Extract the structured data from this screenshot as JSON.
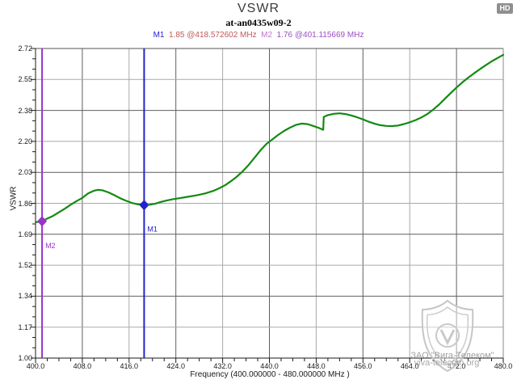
{
  "header": {
    "title": "VSWR",
    "subtitle": "at-an0435w09-2"
  },
  "hd_badge": "HD",
  "marker_readout": {
    "m1_label": "M1",
    "m1_value": "1.85 @418.572602 MHz",
    "m2_label": "M2",
    "m2_value": "1.76 @401.115669 MHz"
  },
  "colors": {
    "curve": "#128a12",
    "m1": "#2323cc",
    "m2": "#9933cc",
    "m1_value_text": "#c05858",
    "m2_value_text": "#9a4ec0",
    "grid_dark": "#5f5f5f",
    "grid_light": "#a9a9a9",
    "axis": "#1a1a1a",
    "border_top": "#555555",
    "border_right": "#8a8a8a",
    "watermark": "#8f8f8f"
  },
  "watermark": {
    "line1": "ЗАО \"Вига-Телеком\"",
    "line2": "viva-telecom.org"
  },
  "chart_data": {
    "type": "line",
    "title": "VSWR",
    "subtitle": "at-an0435w09-2",
    "xlabel": "Frequency (400.000000 - 480.000000 MHz )",
    "ylabel": "VSWR",
    "xlim": [
      400,
      480
    ],
    "ylim": [
      1.0,
      2.72
    ],
    "grid": true,
    "x_major_step_mhz": 8,
    "x_minor_step_mhz": 2,
    "y_minor_per_major": 3,
    "x_tick_labels": [
      "400.0",
      "408.0",
      "416.0",
      "424.0",
      "432.0",
      "440.0",
      "448.0",
      "456.0",
      "464.0",
      "472.0",
      "480.0"
    ],
    "y_tick_labels": [
      "2.72",
      "2.55",
      "2.38",
      "2.20",
      "2.03",
      "1.86",
      "1.69",
      "1.52",
      "1.34",
      "1.17",
      "1.00"
    ],
    "series": [
      {
        "name": "VSWR trace",
        "points": [
          [
            400,
            1.755
          ],
          [
            401.12,
            1.76
          ],
          [
            402,
            1.775
          ],
          [
            403,
            1.79
          ],
          [
            404,
            1.81
          ],
          [
            405,
            1.83
          ],
          [
            406,
            1.852
          ],
          [
            407,
            1.872
          ],
          [
            408,
            1.89
          ],
          [
            409,
            1.915
          ],
          [
            410,
            1.93
          ],
          [
            410.7,
            1.935
          ],
          [
            411.5,
            1.932
          ],
          [
            412.5,
            1.92
          ],
          [
            413.5,
            1.905
          ],
          [
            414.5,
            1.888
          ],
          [
            415.5,
            1.874
          ],
          [
            416.5,
            1.862
          ],
          [
            417.5,
            1.854
          ],
          [
            418.57,
            1.85
          ],
          [
            419.5,
            1.852
          ],
          [
            420.5,
            1.858
          ],
          [
            421.5,
            1.868
          ],
          [
            422.5,
            1.876
          ],
          [
            423.5,
            1.883
          ],
          [
            424.5,
            1.888
          ],
          [
            426,
            1.896
          ],
          [
            427.5,
            1.904
          ],
          [
            429,
            1.915
          ],
          [
            430.5,
            1.93
          ],
          [
            431.5,
            1.945
          ],
          [
            432.5,
            1.962
          ],
          [
            433.5,
            1.985
          ],
          [
            434.5,
            2.01
          ],
          [
            435.5,
            2.04
          ],
          [
            436.5,
            2.075
          ],
          [
            437.5,
            2.115
          ],
          [
            438.5,
            2.155
          ],
          [
            439.5,
            2.19
          ],
          [
            440.5,
            2.215
          ],
          [
            441.5,
            2.24
          ],
          [
            442.5,
            2.262
          ],
          [
            443.5,
            2.28
          ],
          [
            444.5,
            2.295
          ],
          [
            445.5,
            2.303
          ],
          [
            446.5,
            2.3
          ],
          [
            447.5,
            2.29
          ],
          [
            448.5,
            2.278
          ],
          [
            449.2,
            2.268
          ],
          [
            449.3,
            2.34
          ],
          [
            450,
            2.35
          ],
          [
            451,
            2.357
          ],
          [
            452,
            2.36
          ],
          [
            453,
            2.356
          ],
          [
            454,
            2.348
          ],
          [
            455,
            2.338
          ],
          [
            456,
            2.326
          ],
          [
            457,
            2.313
          ],
          [
            458,
            2.302
          ],
          [
            459,
            2.294
          ],
          [
            460,
            2.29
          ],
          [
            461,
            2.289
          ],
          [
            462,
            2.292
          ],
          [
            463,
            2.3
          ],
          [
            464,
            2.31
          ],
          [
            465,
            2.322
          ],
          [
            466,
            2.337
          ],
          [
            467,
            2.356
          ],
          [
            468,
            2.38
          ],
          [
            469,
            2.408
          ],
          [
            470,
            2.44
          ],
          [
            471,
            2.472
          ],
          [
            472,
            2.503
          ],
          [
            473,
            2.532
          ],
          [
            474,
            2.558
          ],
          [
            475,
            2.582
          ],
          [
            476,
            2.605
          ],
          [
            477,
            2.627
          ],
          [
            478,
            2.648
          ],
          [
            479,
            2.667
          ],
          [
            480,
            2.685
          ]
        ]
      }
    ],
    "markers": [
      {
        "id": "M1",
        "freq": 418.572602,
        "value": 1.85
      },
      {
        "id": "M2",
        "freq": 401.115669,
        "value": 1.76
      }
    ]
  }
}
